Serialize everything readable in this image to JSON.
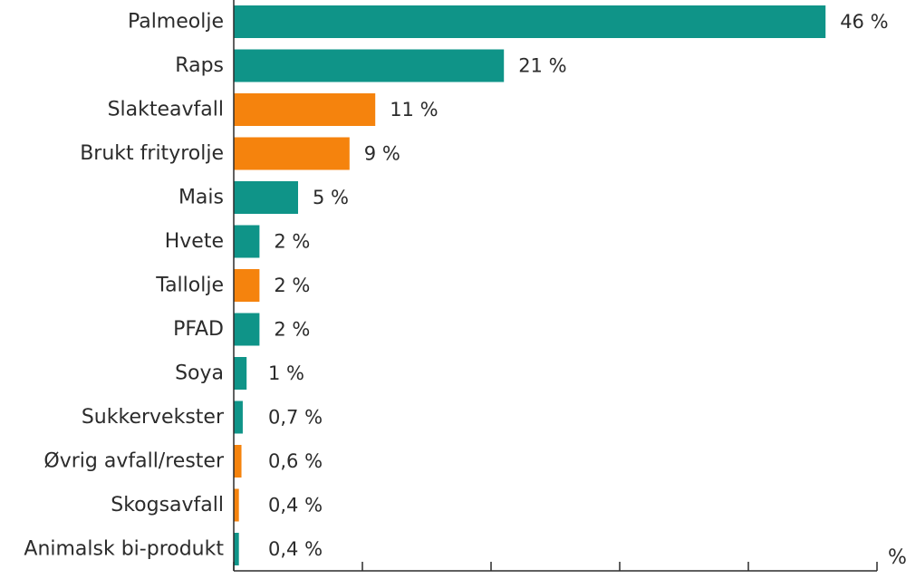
{
  "chart_data": {
    "type": "bar",
    "orientation": "horizontal",
    "title": "",
    "xlabel": "%",
    "ylabel": "",
    "grid": false,
    "legend": "none",
    "categories": [
      "Palmeolje",
      "Raps",
      "Slakteavfall",
      "Brukt frityrolje",
      "Mais",
      "Hvete",
      "Tallolje",
      "PFAD",
      "Soya",
      "Sukkervekster",
      "Øvrig avfall/rester",
      "Skogsavfall",
      "Animalsk bi-produkt"
    ],
    "values": [
      46,
      21,
      11,
      9,
      5,
      2,
      2,
      2,
      1,
      0.7,
      0.6,
      0.4,
      0.4
    ],
    "value_labels": [
      "46 %",
      "21 %",
      "11 %",
      "9 %",
      "5 %",
      "2 %",
      "2 %",
      "2 %",
      "1 %",
      "0,7 %",
      "0,6 %",
      "0,4 %",
      "0,4 %"
    ],
    "bar_colors": [
      "#0f9488",
      "#0f9488",
      "#f5830d",
      "#f5830d",
      "#0f9488",
      "#0f9488",
      "#f5830d",
      "#0f9488",
      "#0f9488",
      "#0f9488",
      "#f5830d",
      "#f5830d",
      "#0f9488"
    ],
    "xlim": [
      0,
      50
    ],
    "x_ticks": [
      0,
      10,
      20,
      30,
      40,
      50
    ]
  },
  "colors": {
    "teal": "#0f9488",
    "orange": "#f5830d",
    "axis": "#2b2b2b"
  }
}
